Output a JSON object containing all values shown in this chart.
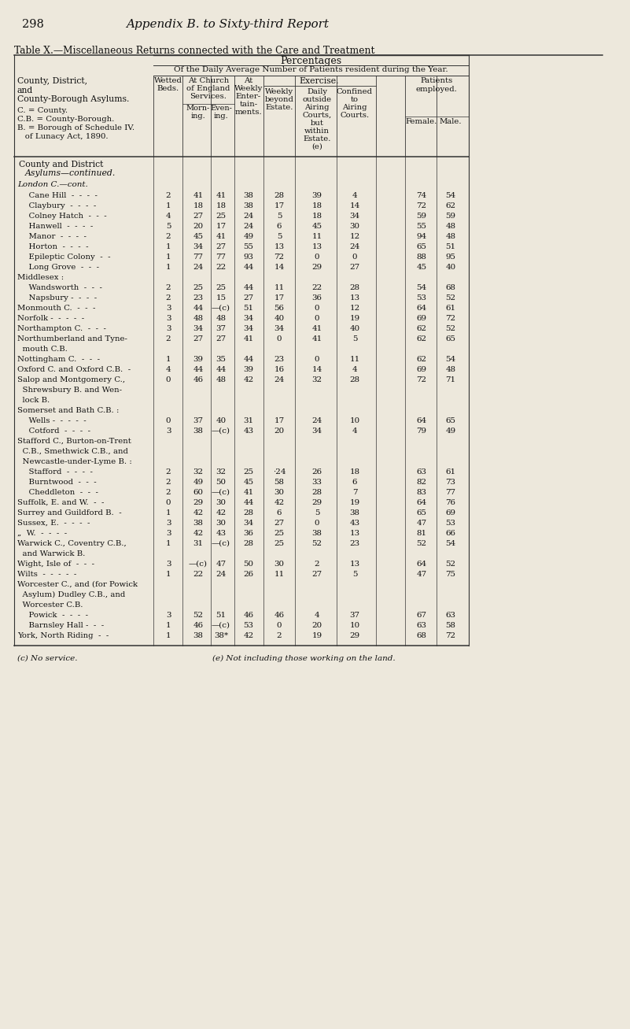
{
  "page_number": "298",
  "page_title": "Appendix B. to Sixty-third Report",
  "table_title": "Table X.—Miscellaneous Returns connected with the Care and Treatment",
  "bg_color": "#ede8dc",
  "rows": [
    {
      "name": "  Cane Hill  -  -  -  -",
      "wetted": "2",
      "morn": "41",
      "even": "41",
      "enter": "38",
      "weekly": "28",
      "daily": "39",
      "confined": "4",
      "female": "74",
      "male": "54",
      "indent": 1
    },
    {
      "name": "  Claybury  -  -  -  -",
      "wetted": "1",
      "morn": "18",
      "even": "18",
      "enter": "38",
      "weekly": "17",
      "daily": "18",
      "confined": "14",
      "female": "72",
      "male": "62",
      "indent": 1
    },
    {
      "name": "  Colney Hatch  -  -  -",
      "wetted": "4",
      "morn": "27",
      "even": "25",
      "enter": "24",
      "weekly": "5",
      "daily": "18",
      "confined": "34",
      "female": "59",
      "male": "59",
      "indent": 1
    },
    {
      "name": "  Hanwell  -  -  -  -",
      "wetted": "5",
      "morn": "20",
      "even": "17",
      "enter": "24",
      "weekly": "6",
      "daily": "45",
      "confined": "30",
      "female": "55",
      "male": "48",
      "indent": 1
    },
    {
      "name": "  Manor  -  -  -  -",
      "wetted": "2",
      "morn": "45",
      "even": "41",
      "enter": "49",
      "weekly": "5",
      "daily": "11",
      "confined": "12",
      "female": "94",
      "male": "48",
      "indent": 1
    },
    {
      "name": "  Horton  -  -  -  -",
      "wetted": "1",
      "morn": "34",
      "even": "27",
      "enter": "55",
      "weekly": "13",
      "daily": "13",
      "confined": "24",
      "female": "65",
      "male": "51",
      "indent": 1
    },
    {
      "name": "  Epileptic Colony  -  -",
      "wetted": "1",
      "morn": "77",
      "even": "77",
      "enter": "93",
      "weekly": "72",
      "daily": "0",
      "confined": "0",
      "female": "88",
      "male": "95",
      "indent": 1
    },
    {
      "name": "  Long Grove  -  -  -",
      "wetted": "1",
      "morn": "24",
      "even": "22",
      "enter": "44",
      "weekly": "14",
      "daily": "29",
      "confined": "27",
      "female": "45",
      "male": "40",
      "indent": 1
    },
    {
      "name": "Middlesex :",
      "wetted": "",
      "morn": "",
      "even": "",
      "enter": "",
      "weekly": "",
      "daily": "",
      "confined": "",
      "female": "",
      "male": "",
      "indent": 0,
      "label_only": true
    },
    {
      "name": "  Wandsworth  -  -  -",
      "wetted": "2",
      "morn": "25",
      "even": "25",
      "enter": "44",
      "weekly": "11",
      "daily": "22",
      "confined": "28",
      "female": "54",
      "male": "68",
      "indent": 1
    },
    {
      "name": "  Napsbury -  -  -  -",
      "wetted": "2",
      "morn": "23",
      "even": "15",
      "enter": "27",
      "weekly": "17",
      "daily": "36",
      "confined": "13",
      "female": "53",
      "male": "52",
      "indent": 1
    },
    {
      "name": "Monmouth C.  -  -  -",
      "wetted": "3",
      "morn": "44",
      "even": "—(c)",
      "enter": "51",
      "weekly": "56",
      "daily": "0",
      "confined": "12",
      "female": "64",
      "male": "61",
      "indent": 0
    },
    {
      "name": "Norfolk -  -  -  -  -",
      "wetted": "3",
      "morn": "48",
      "even": "48",
      "enter": "34",
      "weekly": "40",
      "daily": "0",
      "confined": "19",
      "female": "69",
      "male": "72",
      "indent": 0
    },
    {
      "name": "Northampton C.  -  -  -",
      "wetted": "3",
      "morn": "34",
      "even": "37",
      "enter": "34",
      "weekly": "34",
      "daily": "41",
      "confined": "40",
      "female": "62",
      "male": "52",
      "indent": 0
    },
    {
      "name": "Northumberland and Tyne-",
      "wetted": "2",
      "morn": "27",
      "even": "27",
      "enter": "41",
      "weekly": "0",
      "daily": "41",
      "confined": "5",
      "female": "62",
      "male": "65",
      "indent": 0,
      "cont": "  mouth C.B."
    },
    {
      "name": "Nottingham C.  -  -  -",
      "wetted": "1",
      "morn": "39",
      "even": "35",
      "enter": "44",
      "weekly": "23",
      "daily": "0",
      "confined": "11",
      "female": "62",
      "male": "54",
      "indent": 0
    },
    {
      "name": "Oxford C. and Oxford C.B.  -",
      "wetted": "4",
      "morn": "44",
      "even": "44",
      "enter": "39",
      "weekly": "16",
      "daily": "14",
      "confined": "4",
      "female": "69",
      "male": "48",
      "indent": 0
    },
    {
      "name": "Salop and Montgomery C.,",
      "wetted": "0",
      "morn": "46",
      "even": "48",
      "enter": "42",
      "weekly": "24",
      "daily": "32",
      "confined": "28",
      "female": "72",
      "male": "71",
      "indent": 0,
      "cont": "  Shrewsbury B. and Wen-",
      "cont2": "  lock B."
    },
    {
      "name": "Somerset and Bath C.B. :",
      "wetted": "",
      "morn": "",
      "even": "",
      "enter": "",
      "weekly": "",
      "daily": "",
      "confined": "",
      "female": "",
      "male": "",
      "indent": 0,
      "label_only": true
    },
    {
      "name": "  Wells -  -  -  -  -",
      "wetted": "0",
      "morn": "37",
      "even": "40",
      "enter": "31",
      "weekly": "17",
      "daily": "24",
      "confined": "10",
      "female": "64",
      "male": "65",
      "indent": 1
    },
    {
      "name": "  Cotford  -  -  -  -",
      "wetted": "3",
      "morn": "38",
      "even": "—(c)",
      "enter": "43",
      "weekly": "20",
      "daily": "34",
      "confined": "4",
      "female": "79",
      "male": "49",
      "indent": 1
    },
    {
      "name": "Stafford C., Burton-on-Trent",
      "wetted": "",
      "morn": "",
      "even": "",
      "enter": "",
      "weekly": "",
      "daily": "",
      "confined": "",
      "female": "",
      "male": "",
      "indent": 0,
      "label_only": true,
      "cont": "  C.B., Smethwick C.B., and",
      "cont2": "  Newcastle-under-Lyme B. :"
    },
    {
      "name": "  Stafford  -  -  -  -",
      "wetted": "2",
      "morn": "32",
      "even": "32",
      "enter": "25",
      "weekly": "·24",
      "daily": "26",
      "confined": "18",
      "female": "63",
      "male": "61",
      "indent": 1
    },
    {
      "name": "  Burntwood  -  -  -",
      "wetted": "2",
      "morn": "49",
      "even": "50",
      "enter": "45",
      "weekly": "58",
      "daily": "33",
      "confined": "6",
      "female": "82",
      "male": "73",
      "indent": 1
    },
    {
      "name": "  Cheddleton  -  -  -",
      "wetted": "2",
      "morn": "60",
      "even": "—(c)",
      "enter": "41",
      "weekly": "30",
      "daily": "28",
      "confined": "7",
      "female": "83",
      "male": "77",
      "indent": 1
    },
    {
      "name": "Suffolk, E. and W.  -  -",
      "wetted": "0",
      "morn": "29",
      "even": "30",
      "enter": "44",
      "weekly": "42",
      "daily": "29",
      "confined": "19",
      "female": "64",
      "male": "76",
      "indent": 0
    },
    {
      "name": "Surrey and Guildford B.  -",
      "wetted": "1",
      "morn": "42",
      "even": "42",
      "enter": "28",
      "weekly": "6",
      "daily": "5",
      "confined": "38",
      "female": "65",
      "male": "69",
      "indent": 0
    },
    {
      "name": "Sussex, E.  -  -  -  -",
      "wetted": "3",
      "morn": "38",
      "even": "30",
      "enter": "34",
      "weekly": "27",
      "daily": "0",
      "confined": "43",
      "female": "47",
      "male": "53",
      "indent": 0
    },
    {
      "name": "„  W.  -  -  -  -",
      "wetted": "3",
      "morn": "42",
      "even": "43",
      "enter": "36",
      "weekly": "25",
      "daily": "38",
      "confined": "13",
      "female": "81",
      "male": "66",
      "indent": 0
    },
    {
      "name": "Warwick C., Coventry C.B.,",
      "wetted": "1",
      "morn": "31",
      "even": "—(c)",
      "enter": "28",
      "weekly": "25",
      "daily": "52",
      "confined": "23",
      "female": "52",
      "male": "54",
      "indent": 0,
      "cont": "  and Warwick B."
    },
    {
      "name": "Wight, Isle of  -  -  -",
      "wetted": "3",
      "morn": "—(c)",
      "even": "47",
      "enter": "50",
      "weekly": "30",
      "daily": "2",
      "confined": "13",
      "female": "64",
      "male": "52",
      "indent": 0
    },
    {
      "name": "Wilts  -  -  -  -  -",
      "wetted": "1",
      "morn": "22",
      "even": "24",
      "enter": "26",
      "weekly": "11",
      "daily": "27",
      "confined": "5",
      "female": "47",
      "male": "75",
      "indent": 0
    },
    {
      "name": "Worcester C., and (for Powick",
      "wetted": "",
      "morn": "",
      "even": "",
      "enter": "",
      "weekly": "",
      "daily": "",
      "confined": "",
      "female": "",
      "male": "",
      "indent": 0,
      "label_only": true,
      "cont": "  Asylum) Dudley C.B., and",
      "cont2": "  Worcester C.B."
    },
    {
      "name": "  Powick  -  -  -  -",
      "wetted": "3",
      "morn": "52",
      "even": "51",
      "enter": "46",
      "weekly": "46",
      "daily": "4",
      "confined": "37",
      "female": "67",
      "male": "63",
      "indent": 1
    },
    {
      "name": "  Barnsley Hall -  -  -",
      "wetted": "1",
      "morn": "46",
      "even": "—(c)",
      "enter": "53",
      "weekly": "0",
      "daily": "20",
      "confined": "10",
      "female": "63",
      "male": "58",
      "indent": 1
    },
    {
      "name": "York, North Riding  -  -",
      "wetted": "1",
      "morn": "38",
      "even": "38*",
      "enter": "42",
      "weekly": "2",
      "daily": "19",
      "confined": "29",
      "female": "68",
      "male": "72",
      "indent": 0
    }
  ],
  "footnotes": [
    "(c) No service.",
    "(e) Not including those working on the land."
  ],
  "col_x": {
    "wetted": 214,
    "morn": 252,
    "even": 281,
    "enter": 316,
    "weekly": 355,
    "daily": 403,
    "confined": 451,
    "female": 536,
    "male": 573
  },
  "vcols": [
    195,
    232,
    268,
    298,
    335,
    375,
    428,
    478,
    515,
    555,
    596
  ]
}
